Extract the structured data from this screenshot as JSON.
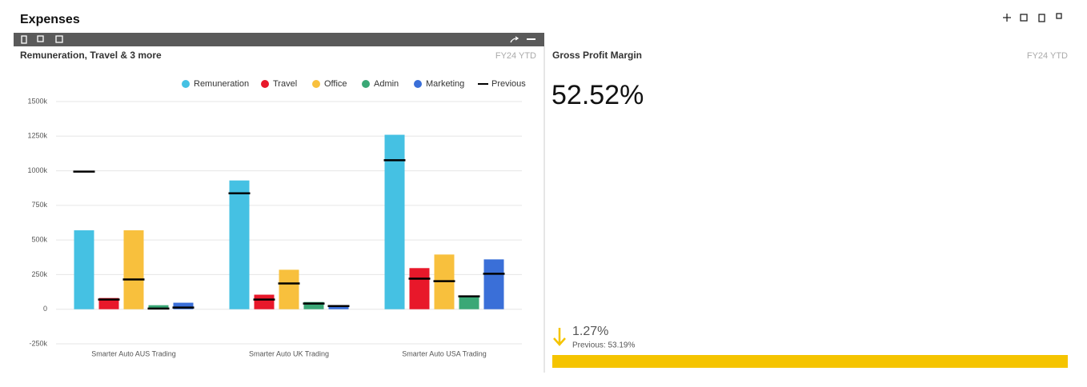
{
  "header": {
    "title": "Expenses"
  },
  "panel": {
    "title": "Remuneration, Travel & 3 more",
    "period": "FY24 YTD"
  },
  "chart_data": {
    "type": "bar",
    "categories": [
      "Smarter Auto AUS Trading",
      "Smarter Auto UK Trading",
      "Smarter Auto USA Trading"
    ],
    "series": [
      {
        "name": "Remuneration",
        "color": "#45c1e3",
        "values": [
          570000,
          930000,
          1260000
        ],
        "previous": [
          994000,
          837000,
          1076000
        ]
      },
      {
        "name": "Travel",
        "color": "#e8182a",
        "values": [
          81000,
          105000,
          297000
        ],
        "previous": [
          70000,
          70000,
          221000
        ]
      },
      {
        "name": "Office",
        "color": "#f8c03d",
        "values": [
          570000,
          285000,
          395000
        ],
        "previous": [
          215000,
          186000,
          203000
        ]
      },
      {
        "name": "Admin",
        "color": "#3aa876",
        "values": [
          29000,
          52000,
          87000
        ],
        "previous": [
          5000,
          41000,
          93000
        ]
      },
      {
        "name": "Marketing",
        "color": "#3a6fd8",
        "values": [
          47000,
          23000,
          360000
        ],
        "previous": [
          12000,
          23000,
          256000
        ]
      }
    ],
    "previous_legend": {
      "name": "Previous",
      "color": "#000000"
    },
    "ylim": [
      -250000,
      1500000
    ],
    "yticks": [
      {
        "value": -250000,
        "label": "-250k"
      },
      0,
      {
        "value": 250000,
        "label": "250k"
      },
      {
        "value": 500000,
        "label": "500k"
      },
      {
        "value": 750000,
        "label": "750k"
      },
      {
        "value": 1000000,
        "label": "1000k"
      },
      {
        "value": 1250000,
        "label": "1250k"
      },
      {
        "value": 1500000,
        "label": "1500k"
      }
    ],
    "grid": true
  },
  "kpi": {
    "title": "Gross Profit Margin",
    "period": "FY24 YTD",
    "value": "52.52%",
    "change": "1.27%",
    "previous": "Previous: 53.19%",
    "color": "#f5c400"
  }
}
